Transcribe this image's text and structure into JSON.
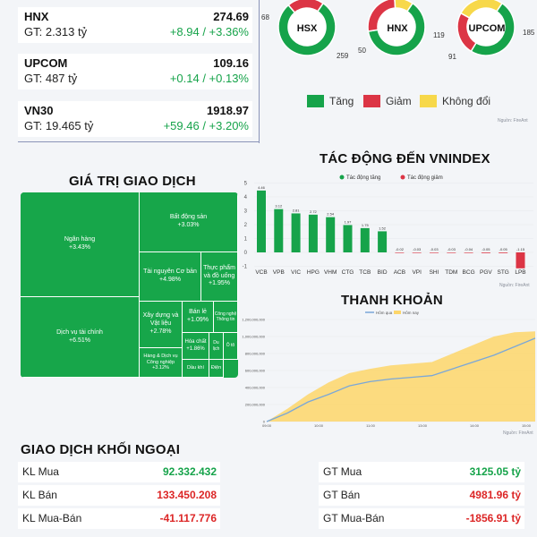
{
  "indices": [
    {
      "name": "HNX",
      "price": "274.69",
      "gt": "GT: 2.313 tỷ",
      "change": "+8.94 / +3.36%"
    },
    {
      "name": "UPCOM",
      "price": "109.16",
      "gt": "GT: 487 tỷ",
      "change": "+0.14 / +0.13%"
    },
    {
      "name": "VN30",
      "price": "1918.97",
      "gt": "GT: 19.465 tỷ",
      "change": "+59.46 / +3.20%"
    }
  ],
  "breadth": [
    {
      "exchange": "HSX",
      "up": 259,
      "down": 68,
      "flat": 0,
      "up_label": "259",
      "down_label": "68"
    },
    {
      "exchange": "HNX",
      "up": 119,
      "down": 50,
      "flat": 20,
      "up_label": "119",
      "down_label": "50"
    },
    {
      "exchange": "UPCOM",
      "up": 185,
      "down": 91,
      "flat": 100,
      "up_label": "185",
      "down_label": "91"
    }
  ],
  "breadth_legend": {
    "up": "Tăng",
    "down": "Giảm",
    "flat": "Không đổi"
  },
  "colors": {
    "up": "#16a34a",
    "down": "#dc3545",
    "flat": "#f7d84a",
    "fill_yellow": "#fdd66a",
    "line_blue": "#7aa7d8"
  },
  "source": "Nguồn: FireAnt",
  "trade_value": {
    "title": "GIÁ TRỊ GIAO DỊCH",
    "cells": [
      {
        "name": "Ngân hàng",
        "pct": "+3.43%"
      },
      {
        "name": "Dịch vụ tài chính",
        "pct": "+6.51%"
      },
      {
        "name": "Bất động sản",
        "pct": "+3.03%"
      },
      {
        "name": "Tài nguyên Cơ bản",
        "pct": "+4.98%"
      },
      {
        "name": "Thực phẩm và đồ uống",
        "pct": "+1.95%"
      },
      {
        "name": "Xây dựng và Vật liệu",
        "pct": "+2.78%"
      },
      {
        "name": "Bán lẻ",
        "pct": "+1.09%"
      },
      {
        "name": "Công nghệ Thông tin",
        "pct": ""
      },
      {
        "name": "Hàng & Dịch vụ Công nghiệp",
        "pct": "+3.12%"
      },
      {
        "name": "Hóa chất",
        "pct": "+1.86%"
      },
      {
        "name": "Du lịch",
        "pct": ""
      },
      {
        "name": "Ô tô",
        "pct": ""
      },
      {
        "name": "Dầu khí",
        "pct": ""
      },
      {
        "name": "Điện",
        "pct": ""
      }
    ]
  },
  "impact_title": "TÁC ĐỘNG ĐẾN VNINDEX",
  "liquidity_title": "THANH KHOẢN",
  "chart_data": [
    {
      "type": "bar",
      "title": "TÁC ĐỘNG ĐẾN VNINDEX",
      "legend": [
        "Tác động tăng",
        "Tác động giảm"
      ],
      "categories": [
        "VCB",
        "VPB",
        "VIC",
        "HPG",
        "VHM",
        "CTG",
        "TCB",
        "BID",
        "ACB",
        "VPI",
        "SHI",
        "TDM",
        "BCG",
        "PGV",
        "STG",
        "LPB"
      ],
      "values": [
        4.46,
        3.12,
        2.81,
        2.72,
        2.54,
        1.97,
        1.75,
        1.52,
        -0.02,
        -0.03,
        -0.03,
        -0.03,
        -0.04,
        -0.05,
        -0.05,
        -1.15
      ],
      "labels": [
        "4.46",
        "3.12",
        "2.81",
        "2.72",
        "2.54",
        "1.97",
        "1.75",
        "1.52",
        "-0.02",
        "-0.03",
        "-0.03",
        "-0.03",
        "-0.04",
        "-0.05",
        "-0.05",
        "-1.15"
      ],
      "yticks": [
        "5",
        "4",
        "3",
        "2",
        "1",
        "0",
        "-1"
      ],
      "ylim": [
        -1.2,
        5.2
      ]
    },
    {
      "type": "area",
      "title": "THANH KHOẢN",
      "legend": [
        "Hôm qua",
        "Hôm nay"
      ],
      "yticks": [
        "0",
        "200,000,000",
        "400,000,000",
        "600,000,000",
        "800,000,000",
        "1,000,000,000",
        "1,200,000,000"
      ],
      "xticks": [
        "09:00",
        "10:00",
        "11:00",
        "13:00",
        "14:00",
        "15:00"
      ],
      "ylim": [
        0,
        1200000000
      ],
      "series": [
        {
          "name": "Hôm qua",
          "values": [
            0,
            100000000,
            230000000,
            320000000,
            420000000,
            470000000,
            500000000,
            520000000,
            540000000,
            620000000,
            700000000,
            780000000,
            880000000,
            980000000
          ]
        },
        {
          "name": "Hôm nay",
          "values": [
            0,
            150000000,
            320000000,
            460000000,
            570000000,
            620000000,
            660000000,
            680000000,
            700000000,
            800000000,
            900000000,
            1000000000,
            1050000000,
            1060000000
          ]
        }
      ]
    }
  ],
  "foreign": {
    "title": "GIAO DỊCH KHỐI NGOẠI",
    "left": [
      {
        "label": "KL Mua",
        "value": "92.332.432",
        "color": "green"
      },
      {
        "label": "KL Bán",
        "value": "133.450.208",
        "color": "red"
      },
      {
        "label": "KL Mua-Bán",
        "value": "-41.117.776",
        "color": "red"
      }
    ],
    "right": [
      {
        "label": "GT Mua",
        "value": "3125.05 tỷ",
        "color": "green"
      },
      {
        "label": "GT Bán",
        "value": "4981.96 tỷ",
        "color": "red"
      },
      {
        "label": "GT Mua-Bán",
        "value": "-1856.91 tỷ",
        "color": "red"
      }
    ]
  }
}
